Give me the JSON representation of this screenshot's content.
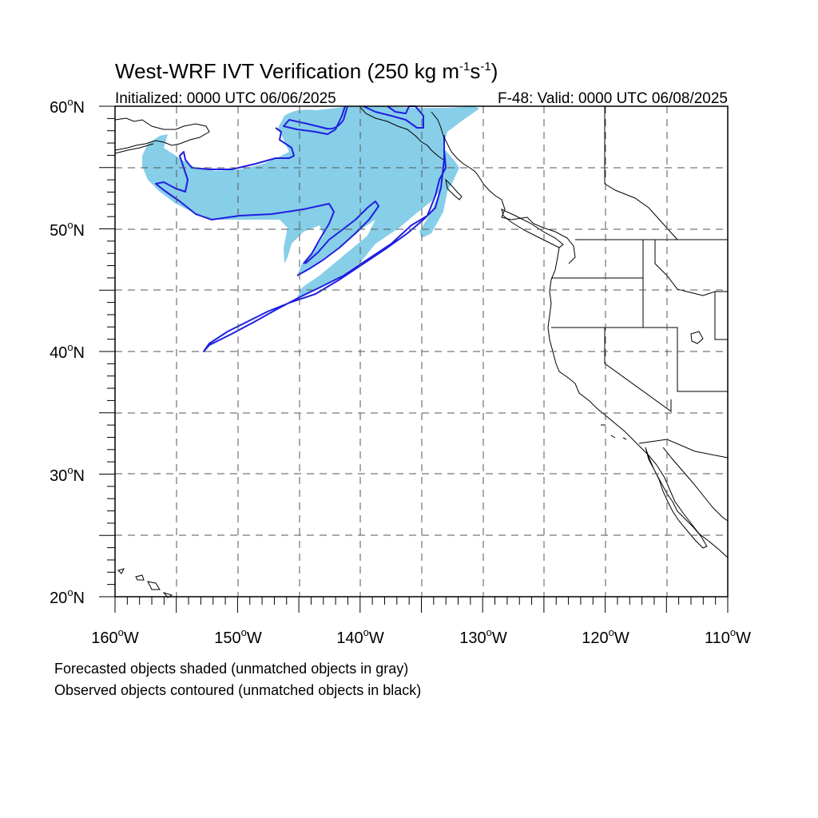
{
  "header": {
    "title_prefix": "West-WRF IVT Verification (250 kg m",
    "title_exp1": "-1",
    "title_mid": "s",
    "title_exp2": "-1",
    "title_suffix": ")",
    "initialized": "Initialized: 0000 UTC 06/06/2025",
    "valid": "F-48: Valid: 0000 UTC 06/08/2025"
  },
  "map": {
    "lon_range": [
      -160,
      -110
    ],
    "lat_range": [
      20,
      60
    ],
    "lat_labels": [
      {
        "num": "60",
        "deg": "o",
        "hemi": "N"
      },
      {
        "num": "50",
        "deg": "o",
        "hemi": "N"
      },
      {
        "num": "40",
        "deg": "o",
        "hemi": "N"
      },
      {
        "num": "30",
        "deg": "o",
        "hemi": "N"
      },
      {
        "num": "20",
        "deg": "o",
        "hemi": "N"
      }
    ],
    "lon_labels": [
      {
        "num": "160",
        "deg": "o",
        "hemi": "W"
      },
      {
        "num": "150",
        "deg": "o",
        "hemi": "W"
      },
      {
        "num": "140",
        "deg": "o",
        "hemi": "W"
      },
      {
        "num": "130",
        "deg": "o",
        "hemi": "W"
      },
      {
        "num": "120",
        "deg": "o",
        "hemi": "W"
      },
      {
        "num": "110",
        "deg": "o",
        "hemi": "W"
      }
    ],
    "colors": {
      "forecast_fill": "#87CEE8",
      "observed_contour": "#1f1fe0",
      "coastline": "#000000",
      "grid": "#555555"
    }
  },
  "notes": {
    "line1": "Forecasted objects shaded (unmatched objects in gray)",
    "line2": "Observed objects contoured (unmatched objects in black)"
  }
}
